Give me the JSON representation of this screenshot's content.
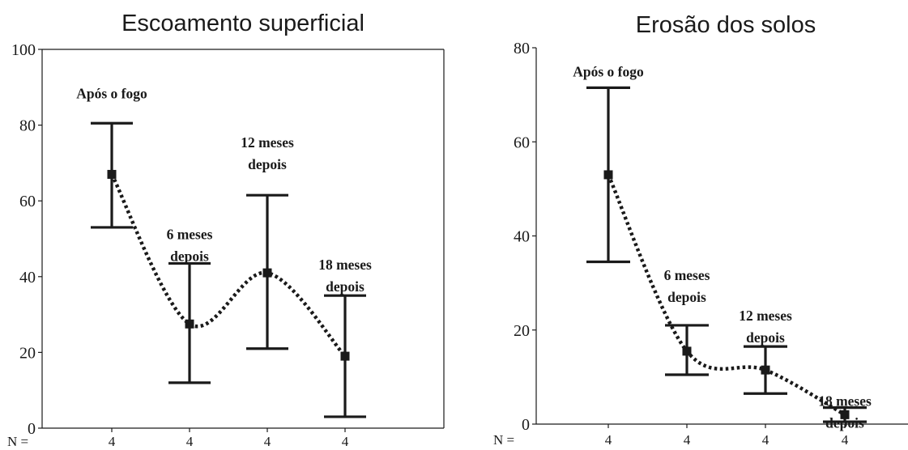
{
  "chart_data": [
    {
      "type": "errorbar",
      "title": "Escoamento superficial",
      "ylim": [
        0,
        100
      ],
      "yticks": [
        0,
        20,
        40,
        60,
        80,
        100
      ],
      "n_prefix": "N =",
      "n_values": [
        "4",
        "4",
        "4",
        "4"
      ],
      "points": [
        {
          "label": [
            "Após o fogo"
          ],
          "mean": 67,
          "low": 53,
          "high": 80.5
        },
        {
          "label": [
            "6 meses",
            "depois"
          ],
          "mean": 27.5,
          "low": 12,
          "high": 43.5
        },
        {
          "label": [
            "12 meses",
            "depois"
          ],
          "mean": 41,
          "low": 21,
          "high": 61.5
        },
        {
          "label": [
            "18 meses",
            "depois"
          ],
          "mean": 19,
          "low": 3,
          "high": 35
        }
      ]
    },
    {
      "type": "errorbar",
      "title": "Erosão dos solos",
      "ylim": [
        0,
        80
      ],
      "yticks": [
        0,
        20,
        40,
        60,
        80
      ],
      "n_prefix": "N =",
      "n_values": [
        "4",
        "4",
        "4",
        "4"
      ],
      "points": [
        {
          "label": [
            "Após o fogo"
          ],
          "mean": 53,
          "low": 34.5,
          "high": 71.5
        },
        {
          "label": [
            "6 meses",
            "depois"
          ],
          "mean": 15.5,
          "low": 10.5,
          "high": 21
        },
        {
          "label": [
            "12 meses",
            "depois"
          ],
          "mean": 11.5,
          "low": 6.5,
          "high": 16.5
        },
        {
          "label": [
            "18 meses",
            "depois"
          ],
          "mean": 2,
          "low": 0.5,
          "high": 3.5
        }
      ]
    }
  ]
}
